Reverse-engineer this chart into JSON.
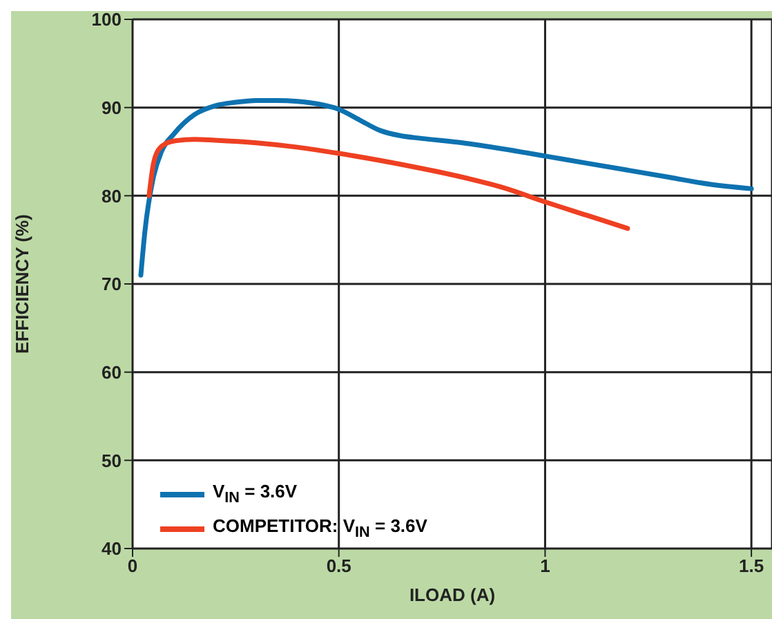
{
  "chart_data": {
    "type": "line",
    "xlabel": "ILOAD (A)",
    "ylabel": "EFFICIENCY (%)",
    "xlim": [
      0,
      1.55
    ],
    "xticks": [
      0,
      0.5,
      1.0,
      1.5
    ],
    "ylim": [
      40,
      100
    ],
    "yticks": [
      40,
      50,
      60,
      70,
      80,
      90,
      100
    ],
    "grid": true,
    "legend": "bottom left",
    "marker": "none",
    "line_style": "solid",
    "series": [
      {
        "name": "V$_{IN}$ = 3.6V",
        "color": "#0e72b0",
        "x": [
          0.02,
          0.03,
          0.05,
          0.07,
          0.1,
          0.15,
          0.2,
          0.25,
          0.3,
          0.35,
          0.4,
          0.45,
          0.5,
          0.55,
          0.6,
          0.65,
          0.7,
          0.8,
          0.9,
          1.0,
          1.1,
          1.2,
          1.3,
          1.4,
          1.5
        ],
        "values": [
          71,
          76,
          82,
          85,
          87,
          89.2,
          90.2,
          90.6,
          90.8,
          90.8,
          90.7,
          90.4,
          89.8,
          88.6,
          87.4,
          86.8,
          86.5,
          86,
          85.3,
          84.5,
          83.7,
          82.9,
          82.1,
          81.3,
          80.8
        ]
      },
      {
        "name": "COMPETITOR: V$_{IN}$ = 3.6V",
        "color": "#ee4022",
        "x": [
          0.04,
          0.05,
          0.06,
          0.08,
          0.1,
          0.15,
          0.2,
          0.3,
          0.4,
          0.5,
          0.6,
          0.7,
          0.8,
          0.9,
          1.0,
          1.1,
          1.2
        ],
        "values": [
          80,
          83.5,
          85,
          85.9,
          86.2,
          86.4,
          86.3,
          86,
          85.5,
          84.8,
          84,
          83.1,
          82.1,
          80.9,
          79.3,
          77.8,
          76.3
        ]
      }
    ]
  }
}
